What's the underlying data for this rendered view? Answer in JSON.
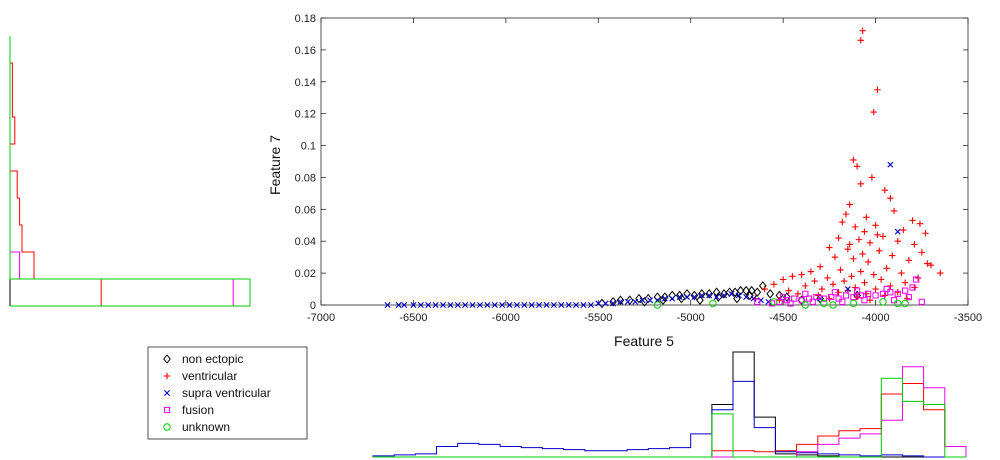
{
  "chart_data": {
    "type": "scatter",
    "xlabel": "Feature 5",
    "ylabel": "Feature 7",
    "xlim": [
      -7000,
      -3500
    ],
    "ylim": [
      0,
      0.18
    ],
    "x_ticks": [
      "-7000",
      "-6500",
      "-6000",
      "-5500",
      "-5000",
      "-4500",
      "-4000",
      "-3500"
    ],
    "y_ticks": [
      "0",
      "0.02",
      "0.04",
      "0.06",
      "0.08",
      "0.1",
      "0.12",
      "0.14",
      "0.16",
      "0.18"
    ],
    "legend": {
      "placement": "bottom-left, outside plot"
    },
    "series": [
      {
        "name": "non ectopic",
        "marker": "diamond",
        "color": "#000000",
        "points": [
          [
            -5480,
            0.001
          ],
          [
            -5420,
            0.002
          ],
          [
            -5380,
            0.003
          ],
          [
            -5330,
            0.003
          ],
          [
            -5280,
            0.004
          ],
          [
            -5230,
            0.004
          ],
          [
            -5180,
            0.005
          ],
          [
            -5140,
            0.005
          ],
          [
            -5100,
            0.006
          ],
          [
            -5060,
            0.006
          ],
          [
            -5020,
            0.007
          ],
          [
            -4980,
            0.006
          ],
          [
            -4940,
            0.007
          ],
          [
            -4900,
            0.007
          ],
          [
            -4860,
            0.008
          ],
          [
            -4820,
            0.007
          ],
          [
            -4790,
            0.008
          ],
          [
            -4760,
            0.008
          ],
          [
            -4730,
            0.009
          ],
          [
            -4700,
            0.009
          ],
          [
            -4670,
            0.009
          ],
          [
            -4640,
            0.008
          ],
          [
            -4610,
            0.012
          ],
          [
            -4570,
            0.007
          ],
          [
            -4520,
            0.006
          ],
          [
            -4480,
            0.005
          ],
          [
            -5250,
            0.002
          ],
          [
            -5150,
            0.003
          ],
          [
            -5050,
            0.004
          ],
          [
            -4950,
            0.003
          ],
          [
            -4850,
            0.005
          ],
          [
            -4750,
            0.004
          ],
          [
            -4680,
            0.006
          ],
          [
            -4400,
            0.003
          ],
          [
            -4300,
            0.004
          ],
          [
            -4100,
            0.006
          ]
        ]
      },
      {
        "name": "ventricular",
        "marker": "plus",
        "color": "#ff0000",
        "points": [
          [
            -4070,
            0.172
          ],
          [
            -4080,
            0.166
          ],
          [
            -3990,
            0.135
          ],
          [
            -4010,
            0.121
          ],
          [
            -4120,
            0.091
          ],
          [
            -4100,
            0.087
          ],
          [
            -4080,
            0.076
          ],
          [
            -4020,
            0.08
          ],
          [
            -3950,
            0.072
          ],
          [
            -3920,
            0.067
          ],
          [
            -4140,
            0.063
          ],
          [
            -3900,
            0.059
          ],
          [
            -4160,
            0.057
          ],
          [
            -4050,
            0.055
          ],
          [
            -3800,
            0.053
          ],
          [
            -3760,
            0.051
          ],
          [
            -4180,
            0.052
          ],
          [
            -4000,
            0.05
          ],
          [
            -4110,
            0.049
          ],
          [
            -3850,
            0.047
          ],
          [
            -4060,
            0.046
          ],
          [
            -3730,
            0.045
          ],
          [
            -3960,
            0.043
          ],
          [
            -4200,
            0.042
          ],
          [
            -4090,
            0.041
          ],
          [
            -3880,
            0.04
          ],
          [
            -4030,
            0.039
          ],
          [
            -3790,
            0.038
          ],
          [
            -4250,
            0.036
          ],
          [
            -4150,
            0.035
          ],
          [
            -3980,
            0.034
          ],
          [
            -3750,
            0.033
          ],
          [
            -4070,
            0.032
          ],
          [
            -3910,
            0.031
          ],
          [
            -4220,
            0.03
          ],
          [
            -4120,
            0.029
          ],
          [
            -3820,
            0.028
          ],
          [
            -4040,
            0.027
          ],
          [
            -3700,
            0.025
          ],
          [
            -4300,
            0.024
          ],
          [
            -3940,
            0.023
          ],
          [
            -4190,
            0.022
          ],
          [
            -4350,
            0.021
          ],
          [
            -4080,
            0.021
          ],
          [
            -3860,
            0.02
          ],
          [
            -4400,
            0.019
          ],
          [
            -4010,
            0.019
          ],
          [
            -4450,
            0.018
          ],
          [
            -4130,
            0.018
          ],
          [
            -3770,
            0.017
          ],
          [
            -4260,
            0.017
          ],
          [
            -4500,
            0.016
          ],
          [
            -3970,
            0.016
          ],
          [
            -4170,
            0.015
          ],
          [
            -4330,
            0.015
          ],
          [
            -3840,
            0.014
          ],
          [
            -4060,
            0.014
          ],
          [
            -4550,
            0.013
          ],
          [
            -4230,
            0.013
          ],
          [
            -3920,
            0.012
          ],
          [
            -4380,
            0.012
          ],
          [
            -4110,
            0.011
          ],
          [
            -4600,
            0.01
          ],
          [
            -3790,
            0.011
          ],
          [
            -4290,
            0.01
          ],
          [
            -4000,
            0.01
          ],
          [
            -4470,
            0.009
          ],
          [
            -4150,
            0.009
          ],
          [
            -3880,
            0.008
          ],
          [
            -4200,
            0.008
          ],
          [
            -4050,
            0.007
          ],
          [
            -4420,
            0.007
          ],
          [
            -3950,
            0.006
          ],
          [
            -4310,
            0.006
          ],
          [
            -4100,
            0.005
          ],
          [
            -4650,
            0.004
          ],
          [
            -4250,
            0.004
          ],
          [
            -3830,
            0.004
          ],
          [
            -4520,
            0.003
          ],
          [
            -4030,
            0.003
          ],
          [
            -3650,
            0.02
          ],
          [
            -3720,
            0.026
          ],
          [
            -4140,
            0.038
          ],
          [
            -3990,
            0.044
          ]
        ]
      },
      {
        "name": "supra ventricular",
        "marker": "cross",
        "color": "#0000cc",
        "points": [
          [
            -6640,
            0.0
          ],
          [
            -6580,
            0.0
          ],
          [
            -6550,
            0.0
          ],
          [
            -6500,
            0.0
          ],
          [
            -6460,
            0.0
          ],
          [
            -6420,
            0.0
          ],
          [
            -6380,
            0.0
          ],
          [
            -6340,
            0.0
          ],
          [
            -6300,
            0.0
          ],
          [
            -6260,
            0.0
          ],
          [
            -6220,
            0.0
          ],
          [
            -6180,
            0.0
          ],
          [
            -6140,
            0.0
          ],
          [
            -6100,
            0.0
          ],
          [
            -6060,
            0.0
          ],
          [
            -6020,
            0.0
          ],
          [
            -5980,
            0.0
          ],
          [
            -5940,
            0.0
          ],
          [
            -5900,
            0.0
          ],
          [
            -5860,
            0.0
          ],
          [
            -5820,
            0.0
          ],
          [
            -5780,
            0.0
          ],
          [
            -5740,
            0.0
          ],
          [
            -5700,
            0.0
          ],
          [
            -5660,
            0.0
          ],
          [
            -5620,
            0.0
          ],
          [
            -5580,
            0.0
          ],
          [
            -5540,
            0.0
          ],
          [
            -5500,
            0.001
          ],
          [
            -5460,
            0.001
          ],
          [
            -5420,
            0.001
          ],
          [
            -5380,
            0.002
          ],
          [
            -5340,
            0.002
          ],
          [
            -5300,
            0.002
          ],
          [
            -5260,
            0.003
          ],
          [
            -5220,
            0.003
          ],
          [
            -5180,
            0.003
          ],
          [
            -5140,
            0.004
          ],
          [
            -5100,
            0.004
          ],
          [
            -5060,
            0.005
          ],
          [
            -5020,
            0.005
          ],
          [
            -4980,
            0.005
          ],
          [
            -4940,
            0.006
          ],
          [
            -4900,
            0.006
          ],
          [
            -4860,
            0.005
          ],
          [
            -4820,
            0.006
          ],
          [
            -4780,
            0.007
          ],
          [
            -4740,
            0.006
          ],
          [
            -4700,
            0.005
          ],
          [
            -4660,
            0.004
          ],
          [
            -4620,
            0.003
          ],
          [
            -4580,
            0.002
          ],
          [
            -3920,
            0.088
          ],
          [
            -3880,
            0.046
          ],
          [
            -4150,
            0.01
          ],
          [
            -4300,
            0.004
          ]
        ]
      },
      {
        "name": "fusion",
        "marker": "square",
        "color": "#ee00ee",
        "points": [
          [
            -4520,
            0.002
          ],
          [
            -4480,
            0.003
          ],
          [
            -4440,
            0.004
          ],
          [
            -4400,
            0.003
          ],
          [
            -4360,
            0.004
          ],
          [
            -4320,
            0.005
          ],
          [
            -4280,
            0.004
          ],
          [
            -4240,
            0.005
          ],
          [
            -4200,
            0.004
          ],
          [
            -4160,
            0.006
          ],
          [
            -4120,
            0.005
          ],
          [
            -4080,
            0.006
          ],
          [
            -4040,
            0.007
          ],
          [
            -4000,
            0.006
          ],
          [
            -3960,
            0.007
          ],
          [
            -3920,
            0.008
          ],
          [
            -3880,
            0.007
          ],
          [
            -3840,
            0.009
          ],
          [
            -3800,
            0.011
          ],
          [
            -3780,
            0.016
          ],
          [
            -3750,
            0.002
          ],
          [
            -3900,
            0.003
          ],
          [
            -4060,
            0.003
          ],
          [
            -4180,
            0.002
          ],
          [
            -4340,
            0.002
          ],
          [
            -4460,
            0.001
          ],
          [
            -4560,
            0.001
          ],
          [
            -4640,
            0.002
          ],
          [
            -3820,
            0.005
          ],
          [
            -3940,
            0.01
          ],
          [
            -4100,
            0.009
          ],
          [
            -4220,
            0.008
          ],
          [
            -4380,
            0.007
          ],
          [
            -4500,
            0.005
          ]
        ]
      },
      {
        "name": "unknown",
        "marker": "circle",
        "color": "#00cc00",
        "points": [
          [
            -5180,
            0.0
          ],
          [
            -4880,
            0.001
          ],
          [
            -4550,
            0.002
          ],
          [
            -4380,
            0.0
          ],
          [
            -4280,
            0.001
          ],
          [
            -4230,
            0.0
          ],
          [
            -4120,
            0.001
          ],
          [
            -3960,
            0.002
          ],
          [
            -3880,
            0.001
          ],
          [
            -3840,
            0.001
          ]
        ]
      }
    ]
  },
  "hist_x": {
    "range": [
      -7000,
      -3500
    ],
    "series": [
      {
        "name": "non ectopic",
        "color": "#000000",
        "values": [
          0,
          0,
          0,
          0,
          0,
          0,
          0,
          0,
          0,
          0,
          0,
          0,
          0,
          0,
          0,
          0,
          0.5,
          1,
          0.38,
          0.03,
          0.02,
          0.01,
          0.0,
          0.0,
          0.0,
          0.0,
          0.0,
          0.0
        ]
      },
      {
        "name": "ventricular",
        "color": "#ff0000",
        "values": [
          0,
          0,
          0,
          0,
          0,
          0,
          0,
          0,
          0,
          0,
          0,
          0,
          0,
          0,
          0,
          0,
          0.06,
          0.06,
          0.05,
          0.06,
          0.12,
          0.2,
          0.25,
          0.27,
          0.6,
          0.7,
          0.45,
          0.1
        ]
      },
      {
        "name": "supra ventricular",
        "color": "#0000cc",
        "values": [
          0.01,
          0.02,
          0.03,
          0.1,
          0.13,
          0.12,
          0.1,
          0.09,
          0.08,
          0.07,
          0.06,
          0.06,
          0.07,
          0.08,
          0.09,
          0.22,
          0.45,
          0.72,
          0.28,
          0.05,
          0.04,
          0.03,
          0.02,
          0.01,
          0.02,
          0.01,
          0.0,
          0.0
        ]
      },
      {
        "name": "fusion",
        "color": "#ee00ee",
        "values": [
          0,
          0,
          0,
          0,
          0,
          0,
          0,
          0,
          0,
          0,
          0,
          0,
          0,
          0,
          0,
          0,
          0,
          0,
          0,
          0,
          0.05,
          0.12,
          0.18,
          0.22,
          0.35,
          0.86,
          0.66,
          0.1
        ]
      },
      {
        "name": "unknown",
        "color": "#00cc00",
        "values": [
          0,
          0,
          0,
          0,
          0,
          0,
          0,
          0,
          0,
          0,
          0,
          0,
          0,
          0,
          0,
          0,
          0.41,
          0,
          0,
          0,
          0,
          0,
          0,
          0,
          0.75,
          0.53,
          0.5,
          0
        ]
      }
    ]
  },
  "hist_y": {
    "range": [
      0,
      0.18
    ],
    "series": [
      {
        "name": "non ectopic",
        "color": "#000000",
        "values": [
          1.0,
          0.0,
          0.0,
          0.0,
          0.0,
          0.0,
          0.0,
          0.0,
          0.0,
          0.0
        ]
      },
      {
        "name": "ventricular",
        "color": "#ff0000",
        "values": [
          0.38,
          0.1,
          0.05,
          0.04,
          0.03,
          0.0,
          0.02,
          0.01,
          0.01,
          0.0
        ]
      },
      {
        "name": "supra ventricular",
        "color": "#0000cc",
        "values": [
          1.0,
          0.0,
          0.0,
          0.0,
          0.0,
          0.0,
          0.0,
          0.0,
          0.0,
          0.0
        ]
      },
      {
        "name": "fusion",
        "color": "#ee00ee",
        "values": [
          0.93,
          0.04,
          0.0,
          0.0,
          0.0,
          0.0,
          0.0,
          0.0,
          0.0,
          0.0
        ]
      },
      {
        "name": "unknown",
        "color": "#00cc00",
        "values": [
          1.0,
          0.0,
          0.0,
          0.0,
          0.0,
          0.0,
          0.0,
          0.0,
          0.0,
          0.0
        ]
      }
    ]
  }
}
